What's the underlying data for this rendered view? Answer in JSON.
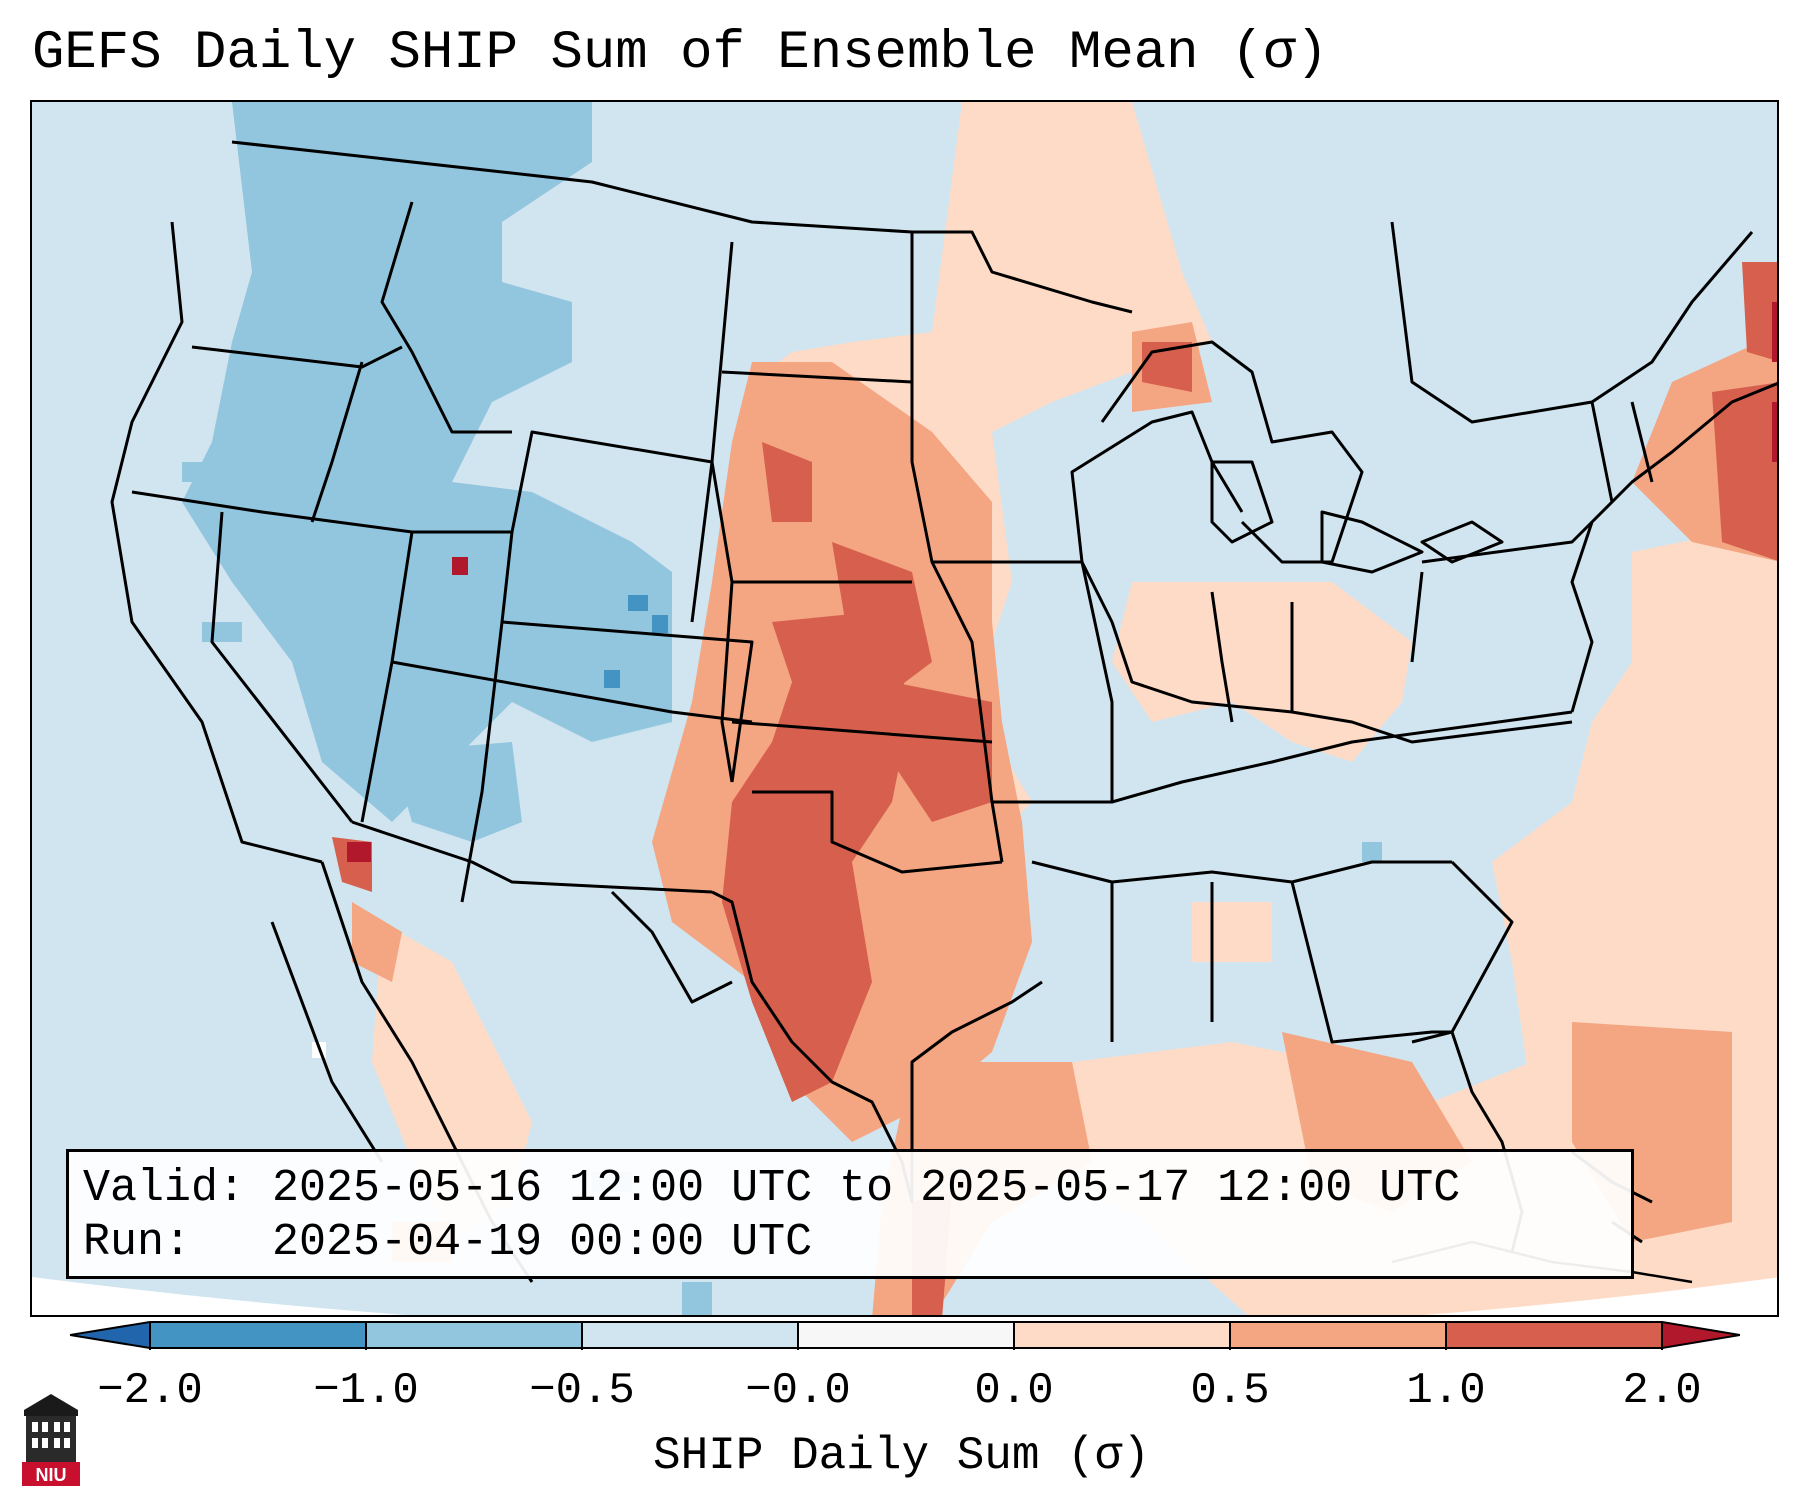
{
  "title": "GEFS Daily SHIP Sum of Ensemble Mean (σ)",
  "info": {
    "valid_label": "Valid:",
    "valid_value": "2025-05-16 12:00 UTC to 2025-05-17 12:00 UTC",
    "run_label": "Run:",
    "run_value": "2025-04-19 00:00 UTC"
  },
  "colorbar": {
    "label": "SHIP Daily Sum (σ)",
    "ticks": [
      "−2.0",
      "−1.0",
      "−0.5",
      "−0.0",
      "0.0",
      "0.5",
      "1.0",
      "2.0"
    ],
    "colors": [
      "#4393c3",
      "#92c5de",
      "#d1e5f0",
      "#f7f7f7",
      "#fddbc7",
      "#f4a582",
      "#d6604d"
    ],
    "under_color": "#2166ac",
    "over_color": "#b2182b"
  },
  "map": {
    "background_color": "#d1e5f0",
    "region": "Contiguous United States"
  },
  "logo": {
    "text": "NIU",
    "icon": "university-building-icon"
  }
}
